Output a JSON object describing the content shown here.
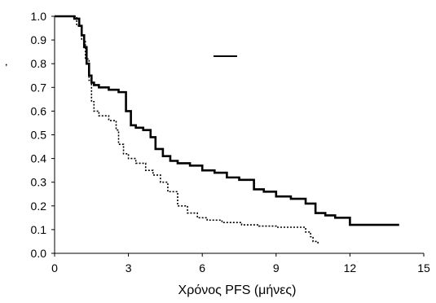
{
  "chart_data": {
    "type": "line",
    "title": "",
    "xlabel": "Χρόνος PFS (μήνες)",
    "ylabel": "",
    "xlim": [
      0,
      15
    ],
    "ylim": [
      0.0,
      1.0
    ],
    "x_ticks": [
      "0",
      "3",
      "6",
      "9",
      "12",
      "15"
    ],
    "y_ticks": [
      "0.0",
      "0.1",
      "0.2",
      "0.3",
      "0.4",
      "0.5",
      "0.6",
      "0.7",
      "0.8",
      "0.9",
      "1.0"
    ],
    "grid": false,
    "legend": {
      "placement": "top-center",
      "entries": [
        {
          "style": "solid"
        }
      ]
    },
    "series": [
      {
        "style": "solid-thick",
        "color": "#000000",
        "x": [
          0,
          0.8,
          1.0,
          1.1,
          1.2,
          1.3,
          1.4,
          1.5,
          1.6,
          1.8,
          2.2,
          2.6,
          2.9,
          3.1,
          3.3,
          3.6,
          3.9,
          4.1,
          4.4,
          4.7,
          5.0,
          5.5,
          6.0,
          6.5,
          7.0,
          7.5,
          8.1,
          8.5,
          9.0,
          9.6,
          10.2,
          10.6,
          11.0,
          11.4,
          12.0,
          14.0
        ],
        "y": [
          1.0,
          0.99,
          0.96,
          0.92,
          0.87,
          0.8,
          0.75,
          0.72,
          0.71,
          0.7,
          0.69,
          0.68,
          0.6,
          0.54,
          0.53,
          0.52,
          0.49,
          0.44,
          0.41,
          0.39,
          0.38,
          0.37,
          0.35,
          0.34,
          0.32,
          0.31,
          0.27,
          0.26,
          0.24,
          0.23,
          0.21,
          0.17,
          0.16,
          0.15,
          0.12,
          0.12
        ]
      },
      {
        "style": "dotted",
        "color": "#000000",
        "x": [
          0,
          0.9,
          1.1,
          1.25,
          1.4,
          1.5,
          1.6,
          1.8,
          2.2,
          2.5,
          2.6,
          2.8,
          3.0,
          3.3,
          3.7,
          4.0,
          4.3,
          4.6,
          5.0,
          5.4,
          5.8,
          6.2,
          6.8,
          7.6,
          8.3,
          9.0,
          10.0,
          10.2,
          10.4,
          10.5,
          10.7
        ],
        "y": [
          1.0,
          0.96,
          0.9,
          0.82,
          0.73,
          0.64,
          0.6,
          0.58,
          0.56,
          0.52,
          0.46,
          0.42,
          0.4,
          0.38,
          0.35,
          0.33,
          0.3,
          0.26,
          0.2,
          0.17,
          0.15,
          0.14,
          0.13,
          0.12,
          0.115,
          0.11,
          0.11,
          0.09,
          0.07,
          0.05,
          0.04
        ]
      }
    ]
  }
}
